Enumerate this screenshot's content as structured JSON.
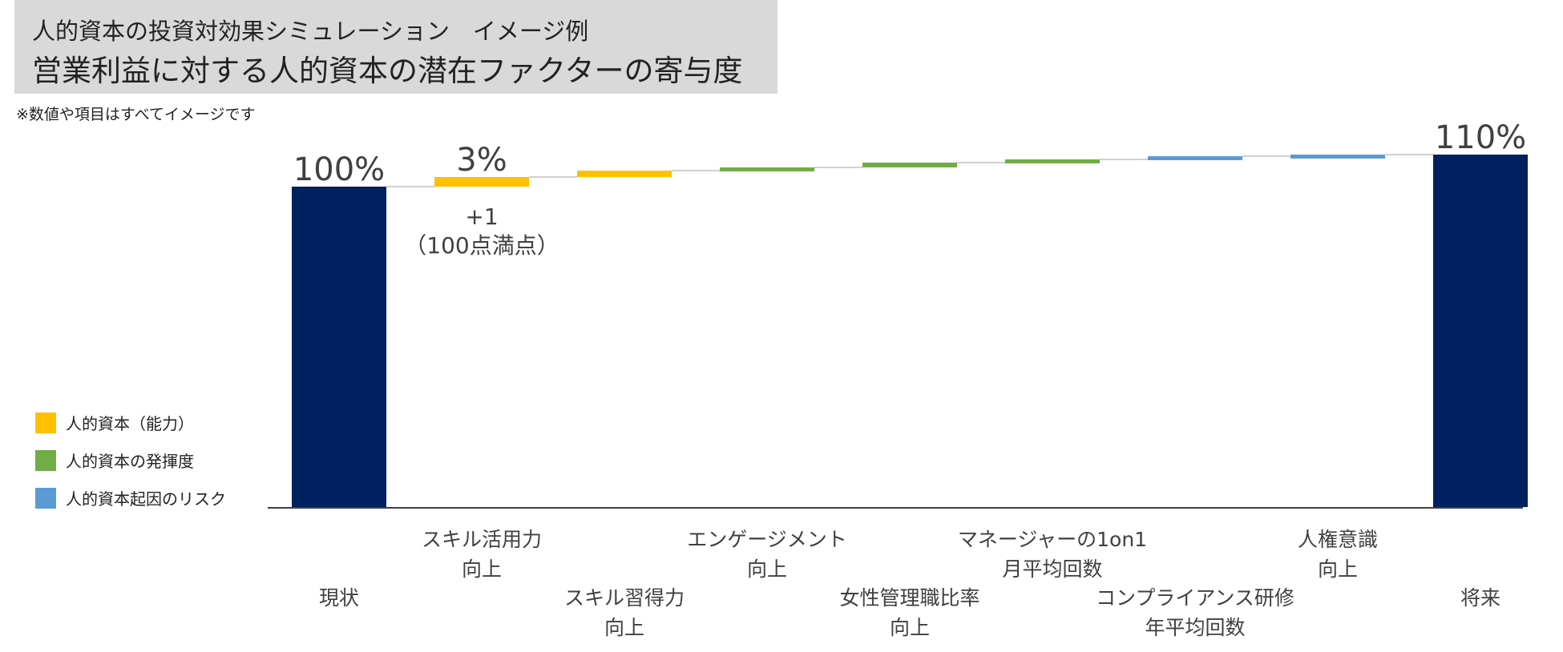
{
  "header": {
    "subtitle": "人的資本の投資対効果シミュレーション　イメージ例",
    "title": "営業利益に対する人的資本の潜在ファクターの寄与度"
  },
  "note": "※数値や項目はすべてイメージです",
  "legend": [
    {
      "label": "人的資本（能力）",
      "color": "#FFC000"
    },
    {
      "label": "人的資本の発揮度",
      "color": "#70AD47"
    },
    {
      "label": "人的資本起因のリスク",
      "color": "#5B9BD5"
    }
  ],
  "chart_data": {
    "type": "bar",
    "subtype": "waterfall",
    "title": "営業利益に対する人的資本の潜在ファクターの寄与度",
    "categories": [
      {
        "lines": [
          "現状"
        ],
        "row": "lower"
      },
      {
        "lines": [
          "スキル活用力",
          "向上"
        ],
        "row": "upper"
      },
      {
        "lines": [
          "スキル習得力",
          "向上"
        ],
        "row": "lower"
      },
      {
        "lines": [
          "エンゲージメント",
          "向上"
        ],
        "row": "upper"
      },
      {
        "lines": [
          "女性管理職比率",
          "向上"
        ],
        "row": "lower"
      },
      {
        "lines": [
          "マネージャーの1on1",
          "月平均回数"
        ],
        "row": "upper"
      },
      {
        "lines": [
          "コンプライアンス研修",
          "年平均回数"
        ],
        "row": "lower"
      },
      {
        "lines": [
          "人権意識",
          "向上"
        ],
        "row": "upper"
      },
      {
        "lines": [
          "将来"
        ],
        "row": "lower"
      }
    ],
    "values": [
      100,
      3,
      2,
      1,
      1.5,
      1,
      1,
      0.5,
      110
    ],
    "kinds": [
      "total",
      "capability",
      "capability",
      "engagement",
      "engagement",
      "engagement",
      "risk",
      "risk",
      "total"
    ],
    "colors": {
      "total": "#002060",
      "capability": "#FFC000",
      "engagement": "#70AD47",
      "risk": "#5B9BD5",
      "connector": "#d0d0d0",
      "axis": "#404040"
    },
    "data_labels": [
      {
        "index": 0,
        "text": "100%"
      },
      {
        "index": 1,
        "text": "3%"
      },
      {
        "index": 8,
        "text": "110%"
      }
    ],
    "annotation": {
      "index": 1,
      "lines": [
        "+1",
        "（100点満点）"
      ]
    },
    "ylim": [
      0,
      110
    ],
    "grid": false,
    "legend_position": "bottom-left"
  }
}
